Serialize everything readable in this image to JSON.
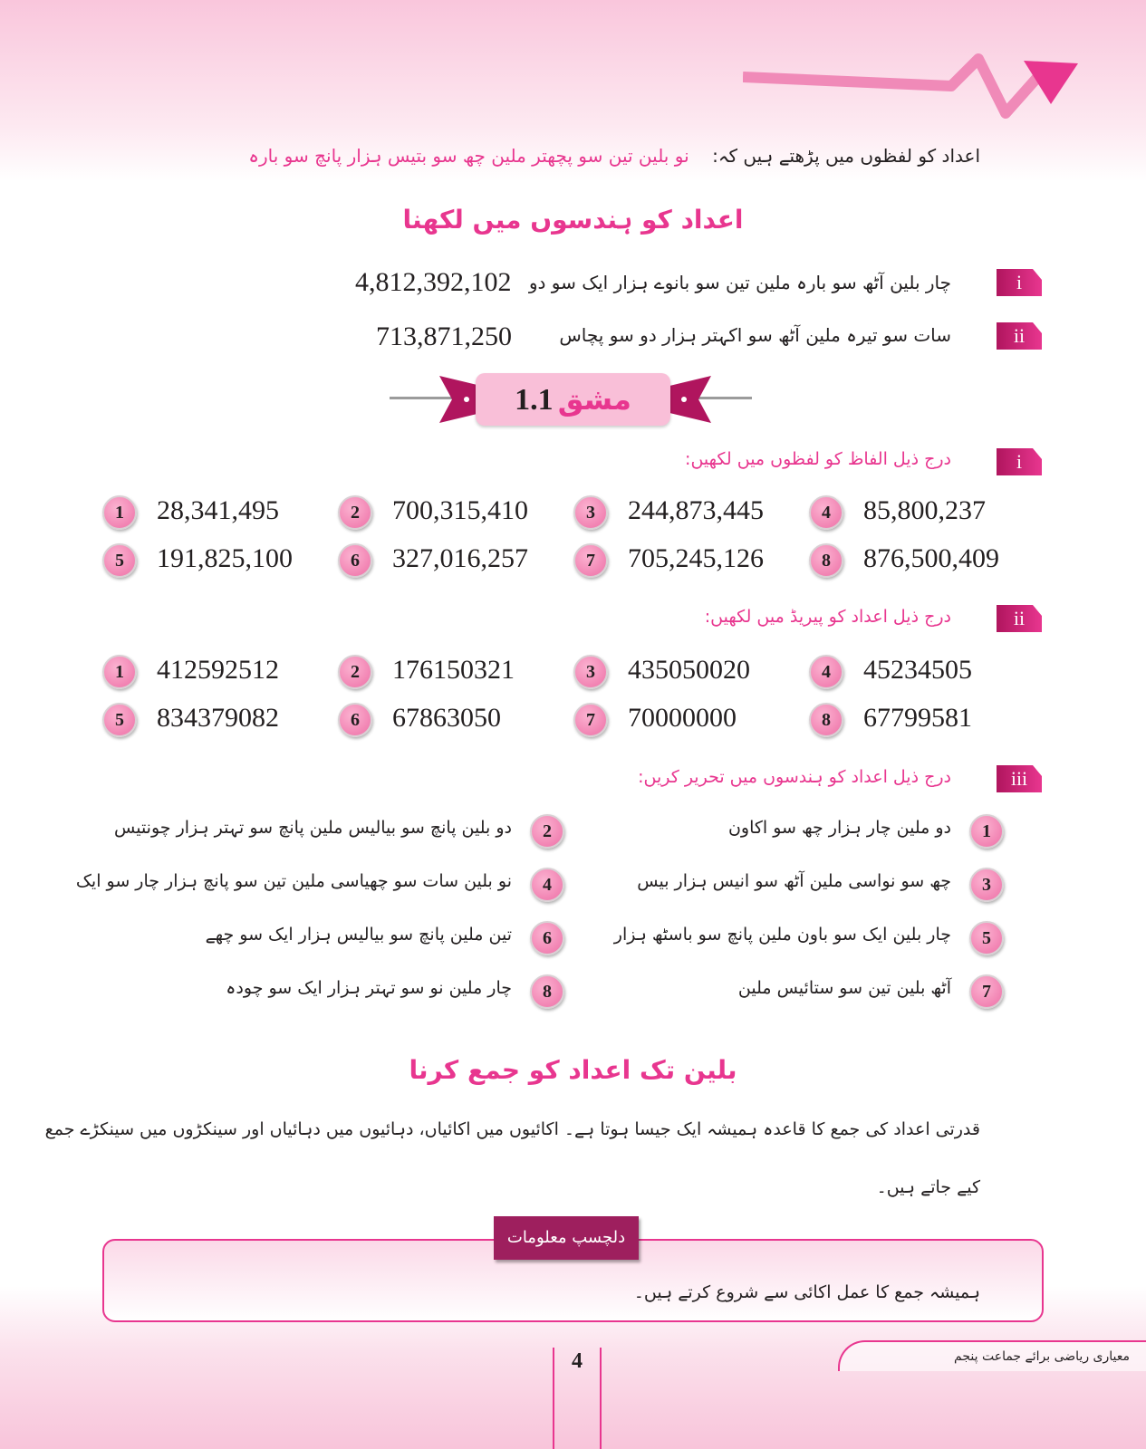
{
  "intro": {
    "prefix": "اعداد کو لفظوں میں پڑھتے ہیں کہ:",
    "words": "نو بلین تین سو پچھتر ملین چھ سو بتیس ہزار پانچ سو بارہ"
  },
  "section1": {
    "title": "اعداد کو ہندسوں میں لکھنا",
    "examples": [
      {
        "label": "i",
        "words": "چار بلین آٹھ سو بارہ ملین تین سو بانوے ہزار ایک سو دو",
        "number": "4,812,392,102"
      },
      {
        "label": "ii",
        "words": "سات سو تیرہ ملین آٹھ سو اکہتر ہزار دو سو پچاس",
        "number": "713,871,250"
      }
    ]
  },
  "exercise": {
    "word": "مشق",
    "number": "1.1"
  },
  "part_i": {
    "label": "i",
    "instruction": "درج ذیل الفاظ کو لفظوں میں لکھیں:",
    "items": [
      {
        "n": "1",
        "v": "28,341,495"
      },
      {
        "n": "2",
        "v": "700,315,410"
      },
      {
        "n": "3",
        "v": "244,873,445"
      },
      {
        "n": "4",
        "v": "85,800,237"
      },
      {
        "n": "5",
        "v": "191,825,100"
      },
      {
        "n": "6",
        "v": "327,016,257"
      },
      {
        "n": "7",
        "v": "705,245,126"
      },
      {
        "n": "8",
        "v": "876,500,409"
      }
    ]
  },
  "part_ii": {
    "label": "ii",
    "instruction": "درج ذیل اعداد کو پیریڈ میں لکھیں:",
    "items": [
      {
        "n": "1",
        "v": "412592512"
      },
      {
        "n": "2",
        "v": "176150321"
      },
      {
        "n": "3",
        "v": "435050020"
      },
      {
        "n": "4",
        "v": "45234505"
      },
      {
        "n": "5",
        "v": "834379082"
      },
      {
        "n": "6",
        "v": "67863050"
      },
      {
        "n": "7",
        "v": "70000000"
      },
      {
        "n": "8",
        "v": "67799581"
      }
    ]
  },
  "part_iii": {
    "label": "iii",
    "instruction": "درج ذیل اعداد کو ہندسوں میں تحریر کریں:",
    "items": [
      {
        "n": "1",
        "v": "دو ملین چار ہزار چھ سو اکاون"
      },
      {
        "n": "2",
        "v": "دو بلین پانچ سو بیالیس ملین پانچ سو تہتر ہزار چونتیس"
      },
      {
        "n": "3",
        "v": "چھ سو نواسی ملین آٹھ سو انیس ہزار بیس"
      },
      {
        "n": "4",
        "v": "نو بلین سات سو چھیاسی ملین تین سو پانچ ہزار چار سو ایک"
      },
      {
        "n": "5",
        "v": "چار بلین ایک سو باون ملین پانچ سو باسٹھ ہزار"
      },
      {
        "n": "6",
        "v": "تین ملین پانچ سو بیالیس ہزار ایک سو چھے"
      },
      {
        "n": "7",
        "v": "آٹھ بلین تین سو ستائیس ملین"
      },
      {
        "n": "8",
        "v": "چار ملین نو سو تہتر ہزار ایک سو چودہ"
      }
    ]
  },
  "section2": {
    "title": "بلین تک اعداد کو جمع کرنا",
    "para_line1": "قدرتی اعداد کی جمع کا قاعدہ ہمیشہ ایک جیسا ہوتا ہے۔ اکائیوں میں اکائیاں، دہائیوں میں دہائیاں اور سینکڑوں میں سینکڑے جمع",
    "para_line2": "کیے جاتے ہیں۔"
  },
  "info_box": {
    "label": "دلچسپ معلومات",
    "text": "ہمیشہ جمع کا عمل اکائی سے شروع کرتے ہیں۔"
  },
  "footer": {
    "book": "معیاری ریاضی برائے جماعت پنجم",
    "page": "4"
  },
  "colors": {
    "accent": "#e8368f",
    "dark_accent": "#9e1f5e",
    "circle": "#ee6fa6"
  }
}
